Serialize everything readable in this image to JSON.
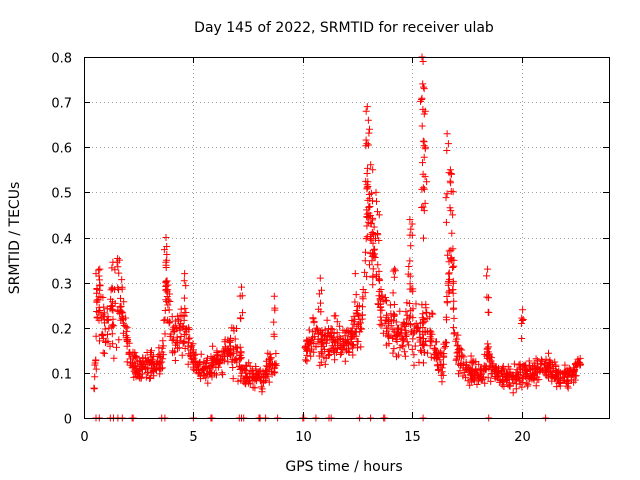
{
  "chart_data": {
    "type": "scatter",
    "title": "Day 145 of 2022, SRMTID for receiver ulab",
    "xlabel": "GPS time / hours",
    "ylabel": "SRMTID / TECUs",
    "xlim": [
      0,
      24
    ],
    "ylim": [
      0,
      0.8
    ],
    "xticks": [
      0,
      5,
      10,
      15,
      20
    ],
    "yticks": [
      0,
      0.1,
      0.2,
      0.3,
      0.4,
      0.5,
      0.6,
      0.7,
      0.8
    ],
    "xtick_labels": [
      "0",
      "5",
      "10",
      "15",
      "20"
    ],
    "ytick_labels": [
      "0",
      "0.1",
      "0.2",
      "0.3",
      "0.4",
      "0.5",
      "0.6",
      "0.7",
      "0.8"
    ],
    "grid": true,
    "marker": "+",
    "color": "#ff0000",
    "series": [
      {
        "name": "SRMTID",
        "envelope": [
          [
            0.45,
            0.06,
            0.02
          ],
          [
            0.6,
            0.2,
            0.12
          ],
          [
            0.75,
            0.26,
            0.14
          ],
          [
            0.9,
            0.18,
            0.1
          ],
          [
            1.1,
            0.2,
            0.1
          ],
          [
            1.3,
            0.24,
            0.14
          ],
          [
            1.55,
            0.27,
            0.16
          ],
          [
            1.8,
            0.22,
            0.08
          ],
          [
            2.1,
            0.14,
            0.05
          ],
          [
            2.5,
            0.11,
            0.04
          ],
          [
            2.9,
            0.12,
            0.04
          ],
          [
            3.3,
            0.11,
            0.04
          ],
          [
            3.6,
            0.14,
            0.06
          ],
          [
            3.75,
            0.3,
            0.1
          ],
          [
            4.0,
            0.17,
            0.07
          ],
          [
            4.3,
            0.19,
            0.08
          ],
          [
            4.6,
            0.2,
            0.1
          ],
          [
            4.9,
            0.14,
            0.06
          ],
          [
            5.2,
            0.11,
            0.04
          ],
          [
            5.5,
            0.1,
            0.04
          ],
          [
            5.9,
            0.12,
            0.05
          ],
          [
            6.3,
            0.13,
            0.05
          ],
          [
            6.7,
            0.16,
            0.07
          ],
          [
            7.0,
            0.14,
            0.07
          ],
          [
            7.3,
            0.1,
            0.05
          ],
          [
            7.7,
            0.09,
            0.04
          ],
          [
            8.1,
            0.09,
            0.04
          ],
          [
            8.5,
            0.11,
            0.05
          ],
          [
            8.8,
            0.12,
            0.04
          ],
          [
            10.1,
            0.14,
            0.05
          ],
          [
            10.5,
            0.18,
            0.07
          ],
          [
            10.9,
            0.17,
            0.07
          ],
          [
            11.3,
            0.18,
            0.07
          ],
          [
            11.7,
            0.17,
            0.07
          ],
          [
            12.1,
            0.16,
            0.06
          ],
          [
            12.5,
            0.2,
            0.08
          ],
          [
            12.8,
            0.24,
            0.08
          ],
          [
            12.95,
            0.45,
            0.22
          ],
          [
            13.15,
            0.4,
            0.16
          ],
          [
            13.4,
            0.3,
            0.1
          ],
          [
            13.7,
            0.22,
            0.08
          ],
          [
            14.0,
            0.2,
            0.08
          ],
          [
            14.3,
            0.18,
            0.08
          ],
          [
            14.6,
            0.17,
            0.07
          ],
          [
            14.9,
            0.22,
            0.14
          ],
          [
            15.2,
            0.2,
            0.1
          ],
          [
            15.5,
            0.18,
            0.08
          ],
          [
            15.8,
            0.2,
            0.1
          ],
          [
            16.1,
            0.14,
            0.06
          ],
          [
            16.4,
            0.11,
            0.04
          ],
          [
            16.75,
            0.38,
            0.16
          ],
          [
            17.0,
            0.16,
            0.07
          ],
          [
            17.4,
            0.11,
            0.04
          ],
          [
            17.8,
            0.1,
            0.04
          ],
          [
            18.2,
            0.1,
            0.04
          ],
          [
            18.5,
            0.14,
            0.07
          ],
          [
            18.9,
            0.09,
            0.04
          ],
          [
            19.3,
            0.09,
            0.04
          ],
          [
            19.7,
            0.09,
            0.04
          ],
          [
            20.1,
            0.1,
            0.04
          ],
          [
            20.5,
            0.1,
            0.04
          ],
          [
            20.9,
            0.11,
            0.04
          ],
          [
            21.3,
            0.11,
            0.04
          ],
          [
            21.7,
            0.09,
            0.04
          ],
          [
            22.1,
            0.09,
            0.04
          ],
          [
            22.4,
            0.1,
            0.04
          ],
          [
            22.7,
            0.13,
            0.04
          ]
        ],
        "peaks": [
          [
            0.55,
            0.32
          ],
          [
            0.72,
            0.33
          ],
          [
            1.62,
            0.35
          ],
          [
            3.75,
            0.4
          ],
          [
            3.78,
            0.38
          ],
          [
            4.6,
            0.32
          ],
          [
            7.2,
            0.29
          ],
          [
            8.7,
            0.27
          ],
          [
            10.8,
            0.31
          ],
          [
            12.4,
            0.32
          ],
          [
            12.9,
            0.68
          ],
          [
            12.95,
            0.69
          ],
          [
            13.0,
            0.66
          ],
          [
            13.05,
            0.64
          ],
          [
            13.2,
            0.55
          ],
          [
            13.35,
            0.5
          ],
          [
            13.5,
            0.45
          ],
          [
            14.2,
            0.33
          ],
          [
            14.9,
            0.44
          ],
          [
            15.0,
            0.43
          ],
          [
            15.45,
            0.8
          ],
          [
            15.5,
            0.79
          ],
          [
            15.55,
            0.73
          ],
          [
            15.6,
            0.68
          ],
          [
            15.5,
            0.54
          ],
          [
            16.6,
            0.63
          ],
          [
            16.75,
            0.55
          ],
          [
            16.8,
            0.54
          ],
          [
            16.85,
            0.45
          ],
          [
            18.45,
            0.33
          ],
          [
            20.05,
            0.24
          ]
        ],
        "zeros": [
          0.55,
          0.7,
          1.2,
          1.35,
          1.55,
          1.75,
          2.2,
          2.25,
          3.55,
          3.7,
          5.0,
          5.8,
          5.85,
          7.1,
          7.2,
          7.3,
          8.0,
          8.05,
          8.3,
          8.85,
          10.0,
          10.05,
          10.6,
          11.2,
          11.3,
          12.6,
          13.1,
          13.7,
          13.75,
          15.5,
          18.5,
          21.1
        ]
      }
    ]
  }
}
